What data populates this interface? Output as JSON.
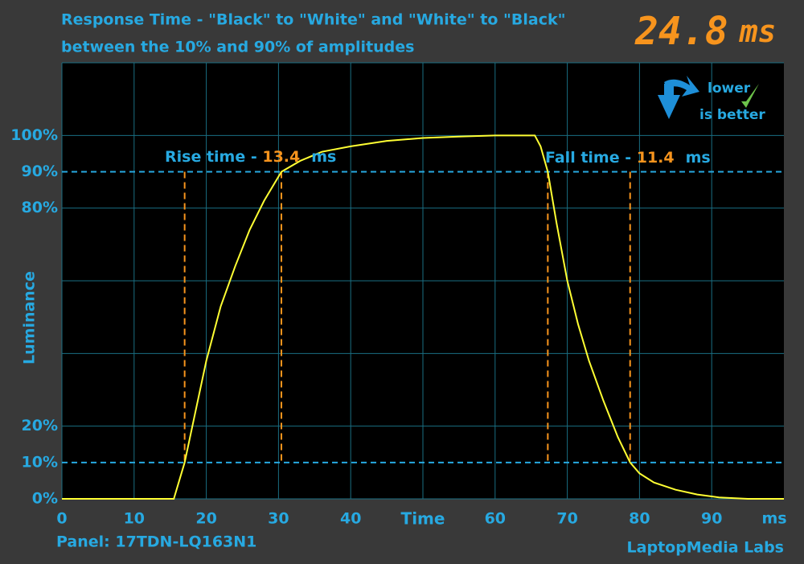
{
  "chart_data": {
    "type": "line",
    "title": "Response Time - \"Black\" to \"White\" and \"White\" to \"Black\"",
    "subtitle": "between the 10% and 90% of amplitudes",
    "x_label": "Time",
    "x_unit": "ms",
    "y_label": "Luminance",
    "panel": "Panel: 17TDN-LQ163N1",
    "credit": "LaptopMedia Labs",
    "badge": [
      "lower",
      "is better"
    ],
    "total": {
      "value": 24.8,
      "unit": "ms"
    },
    "rise": {
      "label": "Rise time - ",
      "value": 13.4,
      "unit": "ms",
      "x": [
        17,
        30.4
      ]
    },
    "fall": {
      "label": "Fall time - ",
      "value": 11.4,
      "unit": "ms",
      "x": [
        67.3,
        78.7
      ]
    },
    "thresholds": [
      10,
      90
    ],
    "x": [
      0,
      15.5,
      17,
      18.5,
      20,
      22,
      24,
      26,
      28,
      30.4,
      33,
      36,
      40,
      45,
      50,
      55,
      60,
      65.5,
      66.3,
      67.3,
      68.5,
      70,
      71.5,
      73,
      75,
      77,
      78.7,
      80,
      82,
      85,
      88,
      91,
      95,
      100
    ],
    "series": [
      {
        "name": "Luminance",
        "color": "#ffff33",
        "values": [
          0,
          0,
          10,
          24,
          38,
          53,
          64,
          74,
          82,
          90,
          93,
          95.5,
          97,
          98.5,
          99.3,
          99.7,
          100,
          100,
          97,
          90,
          76,
          60,
          48,
          38,
          27,
          17,
          10,
          7,
          4.5,
          2.5,
          1.2,
          0.4,
          0,
          0
        ]
      }
    ],
    "xlim": [
      0,
      100
    ],
    "ylim": [
      0,
      120
    ],
    "xticks": [
      0,
      10,
      20,
      30,
      40,
      60,
      70,
      80,
      90
    ],
    "grid_x": [
      0,
      10,
      20,
      30,
      40,
      50,
      60,
      70,
      80,
      90
    ],
    "grid_y": [
      0,
      20,
      40,
      60,
      80,
      100,
      120
    ],
    "yticks": [
      {
        "value": 0,
        "label": "0%"
      },
      {
        "value": 10,
        "label": "10%"
      },
      {
        "value": 20,
        "label": "20%"
      },
      {
        "value": 80,
        "label": "80%"
      },
      {
        "value": 90,
        "label": "90%"
      },
      {
        "value": 100,
        "label": "100%"
      }
    ]
  }
}
